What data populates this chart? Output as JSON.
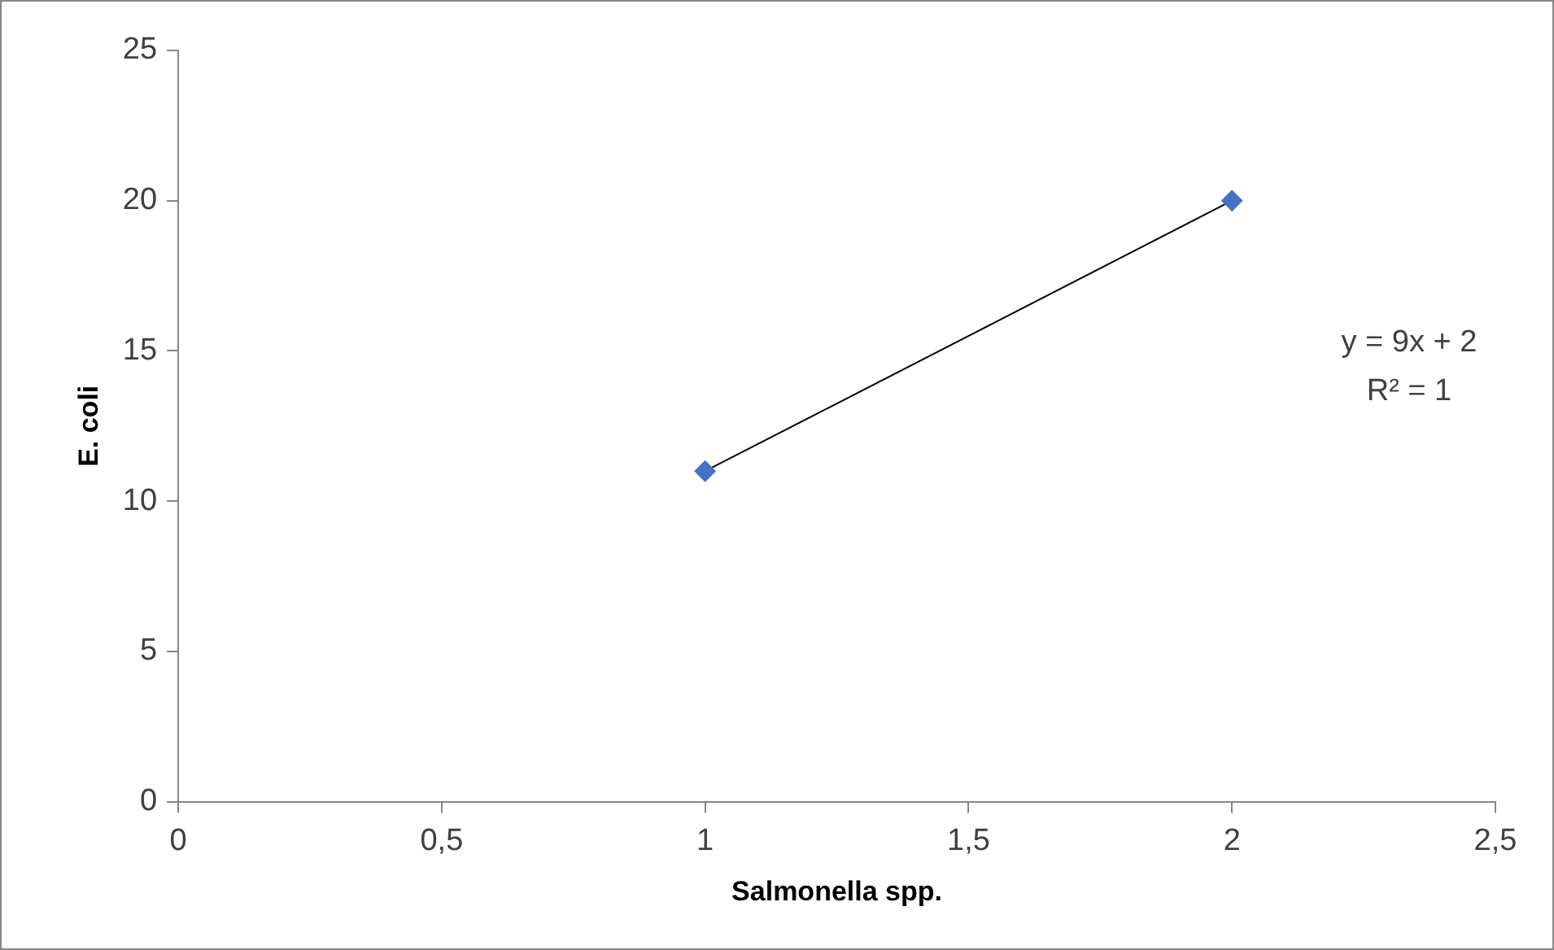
{
  "chart_data": {
    "type": "scatter",
    "xlabel": "Salmonella spp.",
    "ylabel": "E. coli",
    "x": [
      1,
      2
    ],
    "series": [
      {
        "type": "scatter",
        "color": "#4472c4",
        "values": [
          11,
          20
        ],
        "marker": "diamond"
      },
      {
        "type": "line",
        "color": "#000000",
        "x": [
          1,
          2
        ],
        "values": [
          11,
          20
        ],
        "marker": "none",
        "line_style": "solid"
      }
    ],
    "xlim": [
      0,
      2.5
    ],
    "xticks": [
      0,
      {
        "value": 0.5,
        "label": "0,5"
      },
      1,
      {
        "value": 1.5,
        "label": "1,5"
      },
      2,
      {
        "value": 2.5,
        "label": "2,5"
      }
    ],
    "ylim": [
      0,
      25
    ],
    "yticks": [
      0,
      5,
      10,
      15,
      20,
      25
    ],
    "grid": false,
    "legend": false,
    "annotations": [
      "y = 9x + 2",
      "R² = 1"
    ]
  }
}
